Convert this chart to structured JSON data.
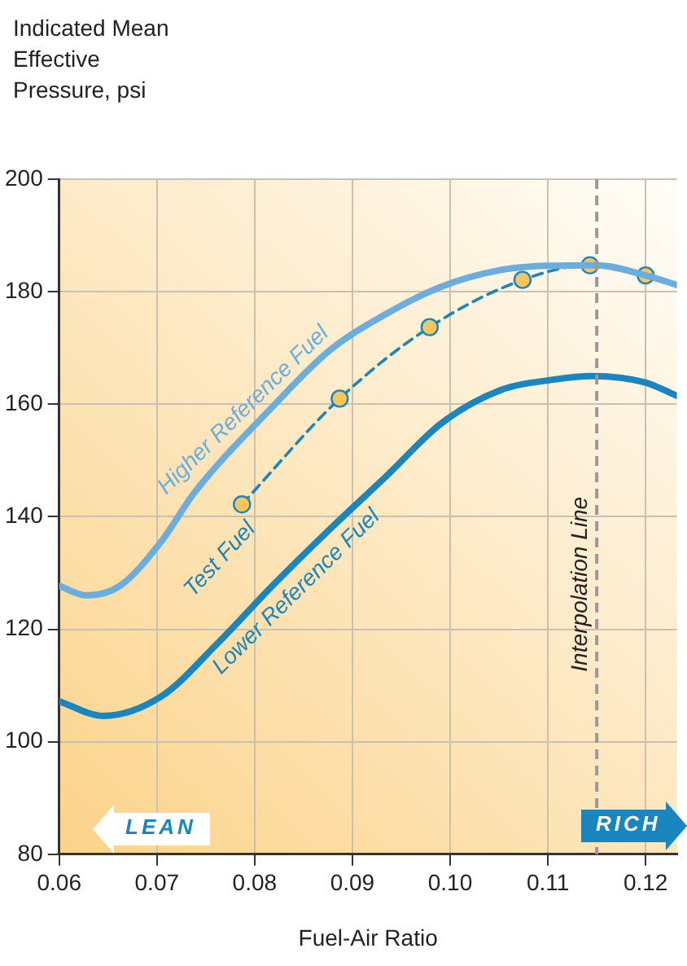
{
  "chart_data": {
    "type": "line",
    "ylabel": "Indicated Mean Effective Pressure, psi",
    "xlabel": "Fuel-Air Ratio",
    "xlim": [
      0.06,
      0.1232
    ],
    "xticks": [
      0.06,
      0.07,
      0.08,
      0.09,
      {
        "value": 0.1,
        "label": "0.10"
      },
      0.11,
      0.12
    ],
    "ylim": [
      80,
      200
    ],
    "yticks": [
      80,
      100,
      120,
      140,
      160,
      180,
      200
    ],
    "grid": true,
    "legend": false,
    "series": [
      {
        "name": "Higher Reference Fuel",
        "color": "#6aaee0",
        "marker": "none",
        "line_style": "solid",
        "x": [
          0.06,
          0.0628,
          0.0662,
          0.0704,
          0.0738,
          0.0818,
          0.0877,
          0.0934,
          0.0991,
          0.105,
          0.11,
          0.115,
          0.12,
          0.1232
        ],
        "values": [
          127.7,
          126,
          127.7,
          135.5,
          144.2,
          159.5,
          169.6,
          176,
          180.9,
          183.8,
          184.6,
          184.7,
          182.9,
          181.2
        ]
      },
      {
        "name": "Lower Reference Fuel",
        "color": "#1a86c0",
        "marker": "none",
        "line_style": "solid",
        "x": [
          0.06,
          0.0645,
          0.0704,
          0.0761,
          0.0818,
          0.0877,
          0.0934,
          0.0991,
          0.105,
          0.1107,
          0.1145,
          0.1199,
          0.1232
        ],
        "values": [
          107.2,
          104.6,
          108,
          117.3,
          127.7,
          137.8,
          147.1,
          156.6,
          162.4,
          164.4,
          165,
          163.9,
          161.5
        ]
      },
      {
        "name": "Test Fuel",
        "color": "#1a86c0",
        "marker": "circle",
        "line_style": "dashed",
        "x": [
          0.0787,
          0.0887,
          0.0979,
          0.1074,
          0.1143,
          0.12
        ],
        "values": [
          142.2,
          161,
          173.7,
          182.1,
          184.7,
          182.9
        ]
      }
    ],
    "ref_lines": [
      {
        "axis": "x",
        "value": 0.115,
        "label": "Interpolation Line",
        "color": "#999999",
        "line_style": "dashed"
      }
    ],
    "annotations": [
      "LEAN",
      "RICH"
    ]
  }
}
